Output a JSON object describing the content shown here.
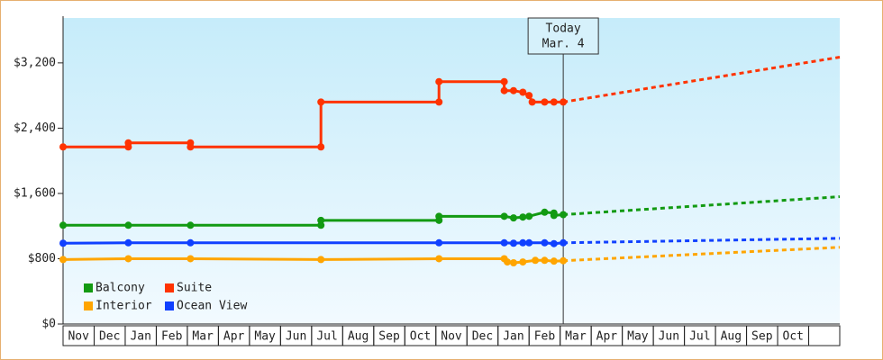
{
  "chart_data": {
    "type": "line",
    "categories": [
      "Nov",
      "Dec",
      "Jan",
      "Feb",
      "Mar",
      "Apr",
      "May",
      "Jun",
      "Jul",
      "Aug",
      "Sep",
      "Oct",
      "Nov",
      "Dec",
      "Jan",
      "Feb",
      "Mar",
      "Apr",
      "May",
      "Jun",
      "Jul",
      "Aug",
      "Sep",
      "Oct",
      null
    ],
    "xlim": [
      0,
      25
    ],
    "ylim": [
      0,
      3750
    ],
    "yticks": [
      {
        "value": 0,
        "label": "$0"
      },
      {
        "value": 800,
        "label": "$800"
      },
      {
        "value": 1600,
        "label": "$1,600"
      },
      {
        "value": 2400,
        "label": "$2,400"
      },
      {
        "value": 3200,
        "label": "$3,200"
      }
    ],
    "annotation": {
      "x": 16.1,
      "label": [
        "Today",
        "Mar. 4"
      ]
    },
    "series": [
      {
        "name": "Balcony",
        "color": "#129a12",
        "x": [
          0,
          2.1,
          4.1,
          8.3,
          8.3,
          12.1,
          12.1,
          14.2,
          14.5,
          14.8,
          15.0,
          15.5,
          15.8,
          15.8,
          16.1
        ],
        "values": [
          1210,
          1210,
          1210,
          1210,
          1270,
          1270,
          1320,
          1320,
          1300,
          1310,
          1320,
          1370,
          1360,
          1330,
          1340
        ],
        "forecast_x": [
          16.1,
          25
        ],
        "forecast_values": [
          1340,
          1560
        ]
      },
      {
        "name": "Suite",
        "color": "#ff3300",
        "x": [
          0,
          2.1,
          2.1,
          4.1,
          4.1,
          8.3,
          8.3,
          12.1,
          12.1,
          14.2,
          14.2,
          14.5,
          14.8,
          15.0,
          15.1,
          15.5,
          15.8,
          16.1
        ],
        "values": [
          2170,
          2170,
          2220,
          2220,
          2170,
          2170,
          2720,
          2720,
          2970,
          2970,
          2860,
          2860,
          2840,
          2800,
          2720,
          2720,
          2720,
          2720
        ],
        "forecast_x": [
          16.1,
          25
        ],
        "forecast_values": [
          2720,
          3270
        ]
      },
      {
        "name": "Interior",
        "color": "#ffa500",
        "x": [
          0,
          2.1,
          4.1,
          8.3,
          12.1,
          14.2,
          14.3,
          14.5,
          14.8,
          15.2,
          15.5,
          15.8,
          16.1
        ],
        "values": [
          790,
          800,
          800,
          790,
          800,
          800,
          760,
          750,
          760,
          780,
          780,
          770,
          775
        ],
        "forecast_x": [
          16.1,
          25
        ],
        "forecast_values": [
          775,
          940
        ]
      },
      {
        "name": "Ocean View",
        "color": "#1040ff",
        "x": [
          0,
          2.1,
          4.1,
          12.1,
          14.2,
          14.5,
          14.8,
          15.0,
          15.5,
          15.8,
          16.1
        ],
        "values": [
          990,
          995,
          995,
          995,
          995,
          990,
          995,
          995,
          995,
          985,
          995
        ],
        "forecast_x": [
          16.1,
          25
        ],
        "forecast_values": [
          995,
          1050
        ]
      }
    ]
  }
}
